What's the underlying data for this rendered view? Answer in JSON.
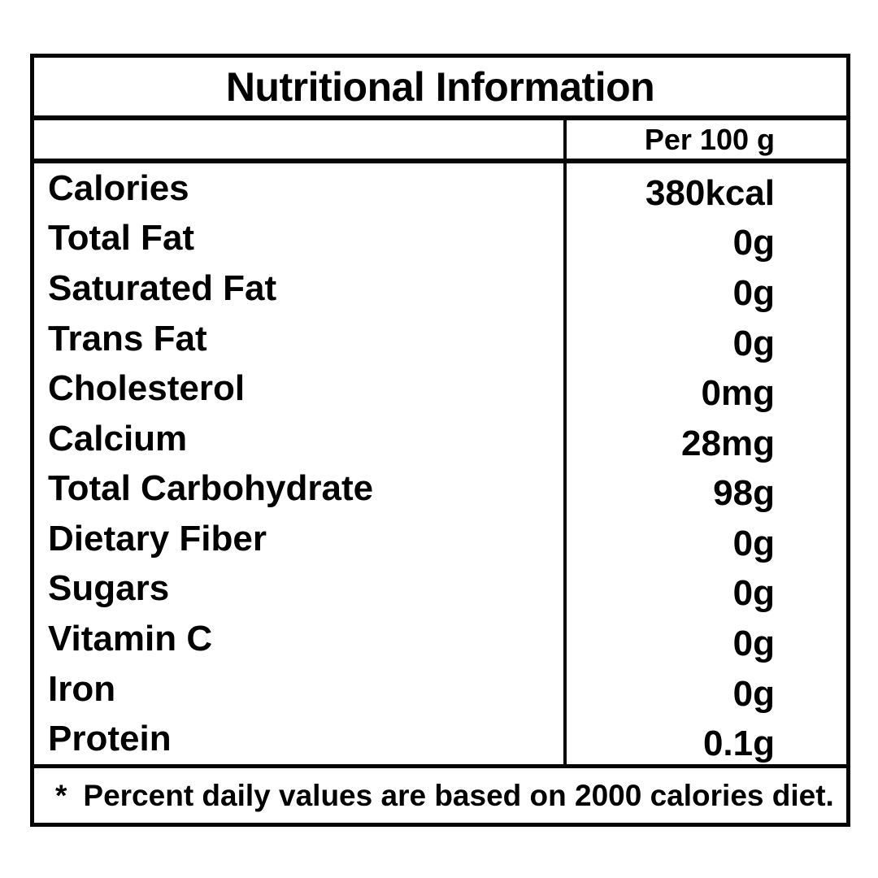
{
  "label": {
    "title": "Nutritional Information",
    "column_header": "Per 100 g",
    "rows": [
      {
        "name": "Calories",
        "value": "380kcal"
      },
      {
        "name": "Total Fat",
        "value": "0g"
      },
      {
        "name": "Saturated Fat",
        "value": "0g"
      },
      {
        "name": "Trans Fat",
        "value": "0g"
      },
      {
        "name": "Cholesterol",
        "value": "0mg"
      },
      {
        "name": "Calcium",
        "value": "28mg"
      },
      {
        "name": "Total Carbohydrate",
        "value": "98g"
      },
      {
        "name": "Dietary Fiber",
        "value": "0g"
      },
      {
        "name": "Sugars",
        "value": "0g"
      },
      {
        "name": "Vitamin C",
        "value": "0g"
      },
      {
        "name": "Iron",
        "value": "0g"
      },
      {
        "name": "Protein",
        "value": "0.1g"
      }
    ],
    "footnote_marker": "*",
    "footnote_text": "Percent daily values are based on 2000 calories diet.",
    "colors": {
      "text": "#000000",
      "border": "#050505",
      "background": "#ffffff"
    }
  }
}
